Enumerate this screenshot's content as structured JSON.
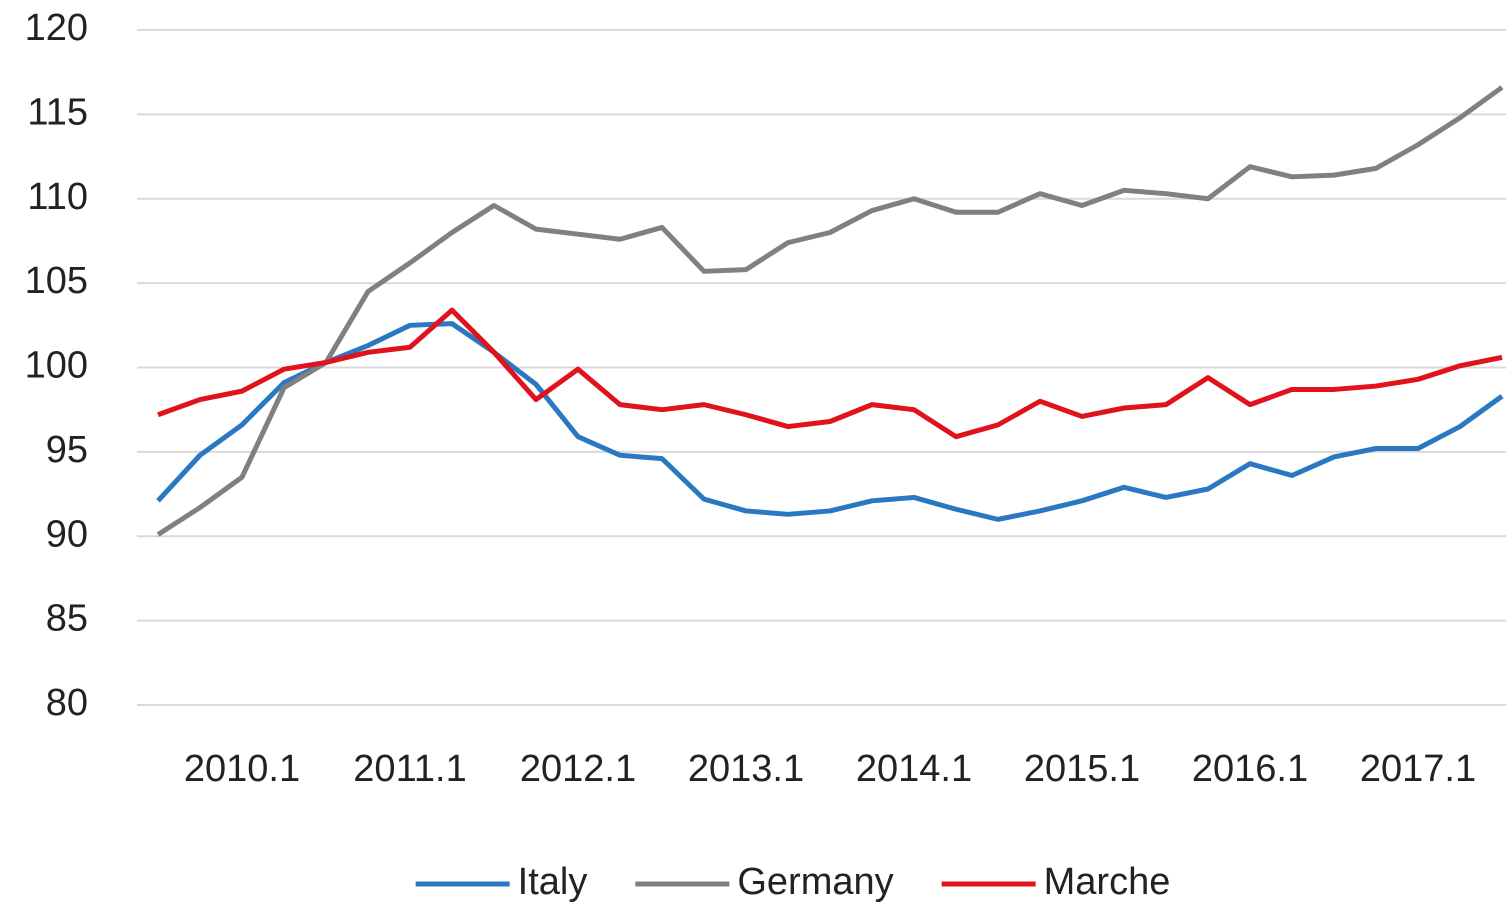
{
  "chart_data": {
    "type": "line",
    "categories": [
      null,
      null,
      "2010.1",
      null,
      null,
      null,
      "2011.1",
      null,
      null,
      null,
      "2012.1",
      null,
      null,
      null,
      "2013.1",
      null,
      null,
      null,
      "2014.1",
      null,
      null,
      null,
      "2015.1",
      null,
      null,
      null,
      "2016.1",
      null,
      null,
      null,
      "2017.1",
      null,
      null
    ],
    "series": [
      {
        "name": "Italy",
        "color": "#2a78c2",
        "values": [
          92.1,
          94.8,
          96.6,
          99.1,
          100.3,
          101.3,
          102.5,
          102.6,
          100.9,
          99.0,
          95.9,
          94.8,
          94.6,
          92.2,
          91.5,
          91.3,
          91.5,
          92.1,
          92.3,
          91.6,
          91.0,
          91.5,
          92.1,
          92.9,
          92.3,
          92.8,
          94.3,
          93.6,
          94.7,
          95.2,
          95.2,
          96.5,
          98.3
        ]
      },
      {
        "name": "Germany",
        "color": "#808080",
        "values": [
          90.1,
          91.7,
          93.5,
          98.8,
          100.3,
          104.5,
          106.2,
          108.0,
          109.6,
          108.2,
          107.9,
          107.6,
          108.3,
          105.7,
          105.8,
          107.4,
          108.0,
          109.3,
          110.0,
          109.2,
          109.2,
          110.3,
          109.6,
          110.5,
          110.3,
          110.0,
          111.9,
          111.3,
          111.4,
          111.8,
          113.2,
          114.8,
          116.6
        ]
      },
      {
        "name": "Marche",
        "color": "#e0121c",
        "values": [
          97.2,
          98.1,
          98.6,
          99.9,
          100.3,
          100.9,
          101.2,
          103.4,
          100.9,
          98.1,
          99.9,
          97.8,
          97.5,
          97.8,
          97.2,
          96.5,
          96.8,
          97.8,
          97.5,
          95.9,
          96.6,
          98.0,
          97.1,
          97.6,
          97.8,
          99.4,
          97.8,
          98.7,
          98.7,
          98.9,
          99.3,
          100.1,
          100.6
        ]
      }
    ],
    "ylim": [
      80,
      120
    ],
    "yticks": [
      80,
      85,
      90,
      95,
      100,
      105,
      110,
      115,
      120
    ],
    "grid": true,
    "legend": "bottom"
  }
}
